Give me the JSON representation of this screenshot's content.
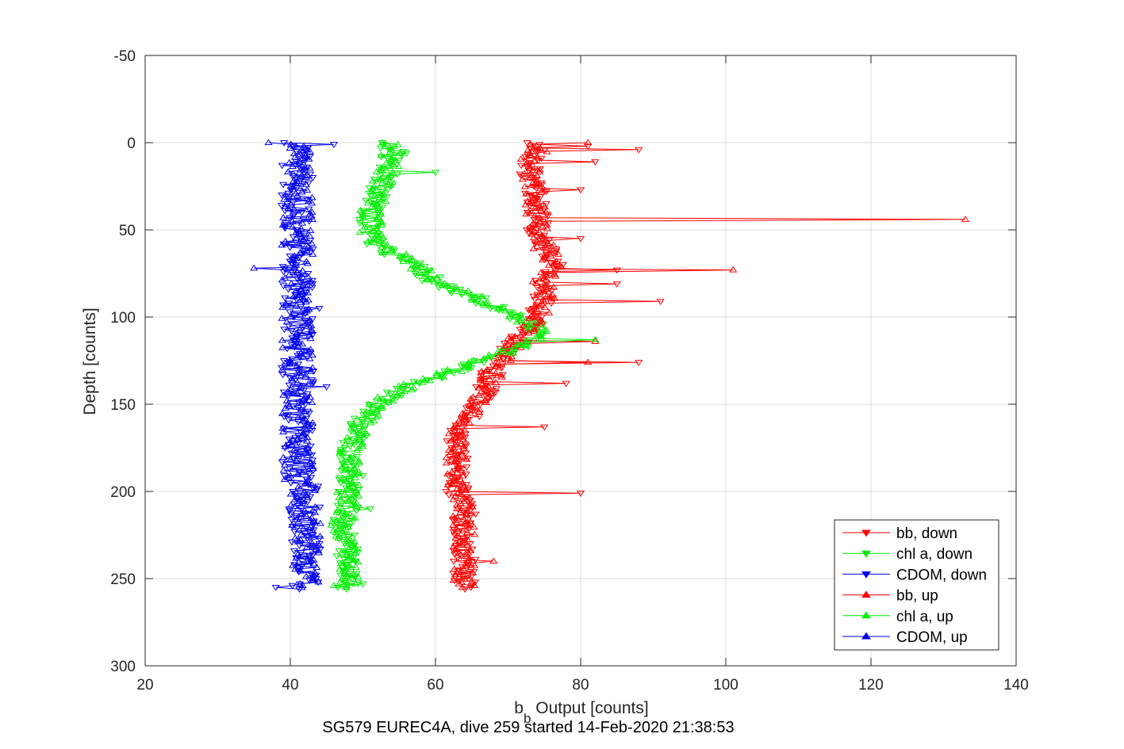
{
  "chart_data": {
    "type": "line",
    "xlabel_main": "b",
    "xlabel_sub": "b",
    "xlabel_rest": " Output [counts]",
    "ylabel": "Depth [counts]",
    "caption": "SG579 EUREC4A, dive 259 started 14-Feb-2020 21:38:53",
    "xlim": [
      20,
      140
    ],
    "ylim": [
      -50,
      300
    ],
    "y_reversed": true,
    "grid": true,
    "xticks": [
      20,
      40,
      60,
      80,
      100,
      120,
      140
    ],
    "yticks": [
      -50,
      0,
      50,
      100,
      150,
      200,
      250,
      300
    ],
    "legend_position": "bottom-right",
    "series": [
      {
        "name": "bb, down",
        "color": "#ff0000",
        "marker": "down",
        "profile": [
          [
            0,
            74
          ],
          [
            5,
            74
          ],
          [
            10,
            73
          ],
          [
            20,
            73
          ],
          [
            30,
            74
          ],
          [
            40,
            74
          ],
          [
            50,
            74
          ],
          [
            60,
            75
          ],
          [
            70,
            76
          ],
          [
            80,
            75
          ],
          [
            90,
            75
          ],
          [
            100,
            74
          ],
          [
            110,
            72
          ],
          [
            120,
            70
          ],
          [
            130,
            68
          ],
          [
            140,
            67
          ],
          [
            150,
            66
          ],
          [
            160,
            64
          ],
          [
            170,
            63
          ],
          [
            180,
            63
          ],
          [
            190,
            63
          ],
          [
            200,
            63
          ],
          [
            210,
            64
          ],
          [
            220,
            64
          ],
          [
            230,
            64
          ],
          [
            240,
            64
          ],
          [
            250,
            64
          ],
          [
            256,
            64
          ]
        ],
        "spikes": [
          [
            2,
            81
          ],
          [
            4,
            88
          ],
          [
            11,
            82
          ],
          [
            27,
            80
          ],
          [
            55,
            80
          ],
          [
            73,
            85
          ],
          [
            81,
            85
          ],
          [
            91,
            91
          ],
          [
            126,
            88
          ],
          [
            138,
            78
          ],
          [
            163,
            75
          ],
          [
            201,
            80
          ]
        ]
      },
      {
        "name": "chl a, down",
        "color": "#00ee00",
        "marker": "down",
        "profile": [
          [
            0,
            54
          ],
          [
            5,
            54
          ],
          [
            10,
            54
          ],
          [
            20,
            53
          ],
          [
            30,
            52
          ],
          [
            40,
            51
          ],
          [
            50,
            51
          ],
          [
            60,
            52
          ],
          [
            65,
            55
          ],
          [
            70,
            57
          ],
          [
            80,
            60
          ],
          [
            90,
            66
          ],
          [
            100,
            71
          ],
          [
            105,
            74
          ],
          [
            110,
            74
          ],
          [
            120,
            70
          ],
          [
            130,
            63
          ],
          [
            140,
            56
          ],
          [
            150,
            52
          ],
          [
            160,
            50
          ],
          [
            170,
            49
          ],
          [
            180,
            48
          ],
          [
            190,
            48
          ],
          [
            200,
            48
          ],
          [
            210,
            48
          ],
          [
            220,
            47
          ],
          [
            230,
            48
          ],
          [
            240,
            48
          ],
          [
            250,
            48
          ],
          [
            256,
            48
          ]
        ],
        "spikes": [
          [
            17,
            60
          ],
          [
            6,
            56
          ],
          [
            191,
            50
          ],
          [
            210,
            51
          ],
          [
            253,
            50
          ]
        ]
      },
      {
        "name": "CDOM, down",
        "color": "#0000ee",
        "marker": "down",
        "profile": [
          [
            0,
            41
          ],
          [
            10,
            41
          ],
          [
            20,
            41
          ],
          [
            30,
            41
          ],
          [
            40,
            41
          ],
          [
            50,
            41
          ],
          [
            60,
            41
          ],
          [
            70,
            41
          ],
          [
            80,
            41
          ],
          [
            90,
            41
          ],
          [
            100,
            41
          ],
          [
            110,
            41
          ],
          [
            120,
            41
          ],
          [
            130,
            41
          ],
          [
            140,
            41
          ],
          [
            150,
            41
          ],
          [
            160,
            41
          ],
          [
            170,
            41
          ],
          [
            180,
            41
          ],
          [
            190,
            41
          ],
          [
            200,
            42
          ],
          [
            210,
            42
          ],
          [
            220,
            42
          ],
          [
            230,
            42
          ],
          [
            240,
            42
          ],
          [
            250,
            42
          ],
          [
            256,
            42
          ]
        ],
        "spikes": [
          [
            1,
            46
          ],
          [
            95,
            44
          ],
          [
            140,
            45
          ],
          [
            255,
            38
          ]
        ]
      },
      {
        "name": "bb, up",
        "color": "#ff0000",
        "marker": "up",
        "profile": [
          [
            0,
            74
          ],
          [
            5,
            74
          ],
          [
            10,
            73
          ],
          [
            20,
            73
          ],
          [
            30,
            74
          ],
          [
            40,
            74
          ],
          [
            50,
            74
          ],
          [
            60,
            75
          ],
          [
            70,
            76
          ],
          [
            80,
            75
          ],
          [
            90,
            75
          ],
          [
            100,
            74
          ],
          [
            110,
            72
          ],
          [
            120,
            70
          ],
          [
            130,
            68
          ],
          [
            140,
            67
          ],
          [
            150,
            66
          ],
          [
            160,
            64
          ],
          [
            170,
            63
          ],
          [
            180,
            63
          ],
          [
            190,
            63
          ],
          [
            200,
            63
          ],
          [
            210,
            64
          ],
          [
            220,
            64
          ],
          [
            230,
            64
          ],
          [
            240,
            64
          ],
          [
            250,
            64
          ],
          [
            256,
            64
          ]
        ],
        "spikes": [
          [
            0,
            81
          ],
          [
            44,
            133
          ],
          [
            73,
            101
          ],
          [
            114,
            82
          ],
          [
            126,
            81
          ],
          [
            240,
            68
          ]
        ]
      },
      {
        "name": "chl a, up",
        "color": "#00ee00",
        "marker": "up",
        "profile": [
          [
            0,
            54
          ],
          [
            5,
            54
          ],
          [
            10,
            54
          ],
          [
            20,
            53
          ],
          [
            30,
            52
          ],
          [
            40,
            51
          ],
          [
            50,
            51
          ],
          [
            60,
            52
          ],
          [
            65,
            55
          ],
          [
            70,
            57
          ],
          [
            80,
            60
          ],
          [
            90,
            66
          ],
          [
            100,
            71
          ],
          [
            105,
            74
          ],
          [
            110,
            74
          ],
          [
            120,
            70
          ],
          [
            130,
            63
          ],
          [
            140,
            56
          ],
          [
            150,
            52
          ],
          [
            160,
            50
          ],
          [
            170,
            49
          ],
          [
            180,
            48
          ],
          [
            190,
            48
          ],
          [
            200,
            48
          ],
          [
            210,
            48
          ],
          [
            220,
            47
          ],
          [
            230,
            48
          ],
          [
            240,
            48
          ],
          [
            250,
            48
          ],
          [
            256,
            48
          ]
        ],
        "spikes": [
          [
            113,
            82
          ],
          [
            254,
            46
          ]
        ]
      },
      {
        "name": "CDOM, up",
        "color": "#0000ee",
        "marker": "up",
        "profile": [
          [
            0,
            41
          ],
          [
            10,
            41
          ],
          [
            20,
            41
          ],
          [
            30,
            41
          ],
          [
            40,
            41
          ],
          [
            50,
            41
          ],
          [
            60,
            41
          ],
          [
            70,
            41
          ],
          [
            80,
            41
          ],
          [
            90,
            41
          ],
          [
            100,
            41
          ],
          [
            110,
            41
          ],
          [
            120,
            41
          ],
          [
            130,
            41
          ],
          [
            140,
            41
          ],
          [
            150,
            41
          ],
          [
            160,
            41
          ],
          [
            170,
            41
          ],
          [
            180,
            41
          ],
          [
            190,
            41
          ],
          [
            200,
            42
          ],
          [
            210,
            42
          ],
          [
            220,
            42
          ],
          [
            230,
            42
          ],
          [
            240,
            42
          ],
          [
            250,
            42
          ],
          [
            256,
            42
          ]
        ],
        "spikes": [
          [
            72,
            35
          ],
          [
            0,
            37
          ]
        ]
      }
    ]
  }
}
